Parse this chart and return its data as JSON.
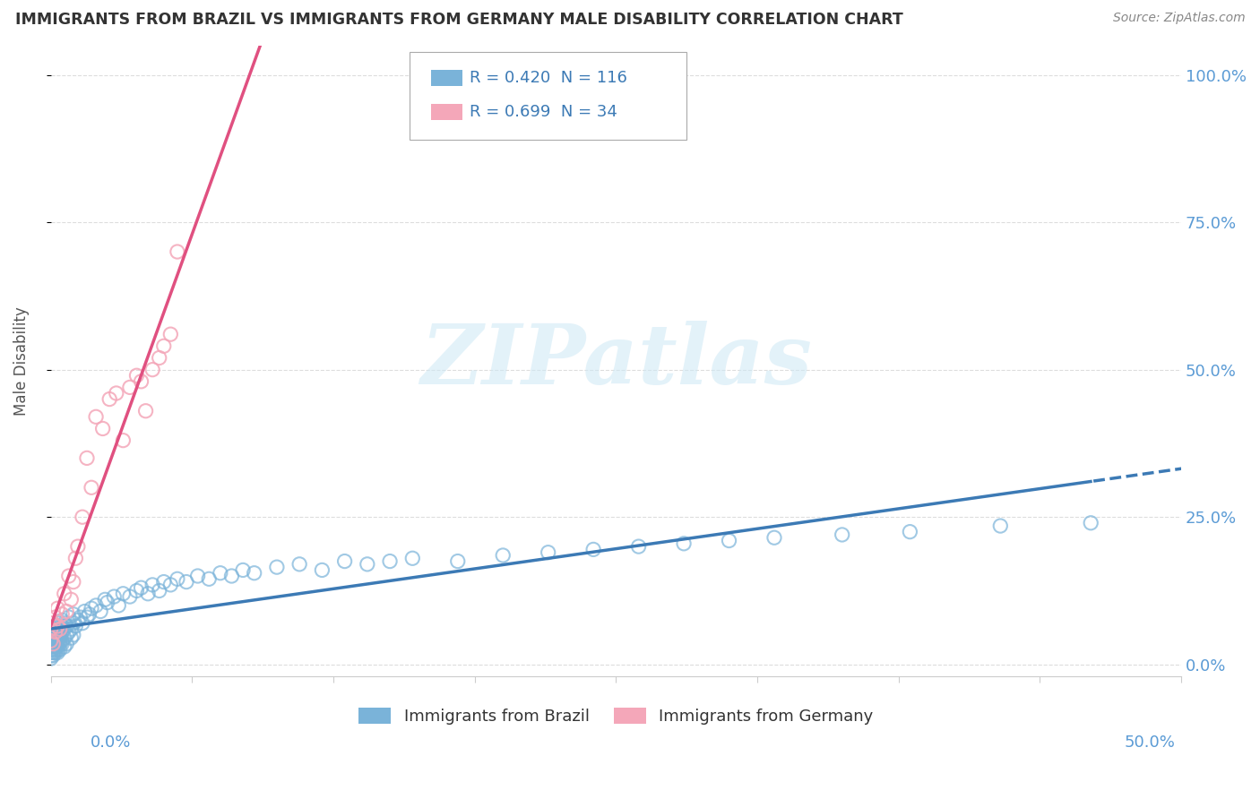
{
  "title": "IMMIGRANTS FROM BRAZIL VS IMMIGRANTS FROM GERMANY MALE DISABILITY CORRELATION CHART",
  "source": "Source: ZipAtlas.com",
  "ylabel": "Male Disability",
  "watermark": "ZIPatlas",
  "brazil": {
    "R": 0.42,
    "N": 116,
    "color": "#7ab3d9",
    "color_line": "#3c7ab5",
    "label": "Immigrants from Brazil",
    "x": [
      0.0,
      0.0,
      0.0,
      0.0,
      0.0,
      0.0,
      0.0,
      0.0,
      0.0,
      0.0,
      0.001,
      0.001,
      0.001,
      0.001,
      0.001,
      0.001,
      0.001,
      0.001,
      0.001,
      0.001,
      0.002,
      0.002,
      0.002,
      0.002,
      0.002,
      0.002,
      0.002,
      0.002,
      0.002,
      0.002,
      0.003,
      0.003,
      0.003,
      0.003,
      0.003,
      0.003,
      0.003,
      0.003,
      0.003,
      0.003,
      0.004,
      0.004,
      0.004,
      0.004,
      0.004,
      0.004,
      0.004,
      0.005,
      0.005,
      0.005,
      0.005,
      0.005,
      0.006,
      0.006,
      0.006,
      0.006,
      0.007,
      0.007,
      0.007,
      0.008,
      0.008,
      0.009,
      0.009,
      0.01,
      0.01,
      0.01,
      0.011,
      0.012,
      0.013,
      0.014,
      0.015,
      0.016,
      0.017,
      0.018,
      0.02,
      0.022,
      0.024,
      0.025,
      0.028,
      0.03,
      0.032,
      0.035,
      0.038,
      0.04,
      0.043,
      0.045,
      0.048,
      0.05,
      0.053,
      0.056,
      0.06,
      0.065,
      0.07,
      0.075,
      0.08,
      0.085,
      0.09,
      0.1,
      0.11,
      0.12,
      0.13,
      0.14,
      0.15,
      0.16,
      0.18,
      0.2,
      0.22,
      0.24,
      0.26,
      0.28,
      0.3,
      0.32,
      0.35,
      0.38,
      0.42,
      0.46
    ],
    "y": [
      0.03,
      0.04,
      0.02,
      0.035,
      0.025,
      0.045,
      0.015,
      0.05,
      0.01,
      0.055,
      0.03,
      0.045,
      0.02,
      0.035,
      0.055,
      0.025,
      0.06,
      0.015,
      0.04,
      0.05,
      0.025,
      0.04,
      0.055,
      0.03,
      0.045,
      0.035,
      0.06,
      0.02,
      0.05,
      0.065,
      0.035,
      0.05,
      0.025,
      0.06,
      0.04,
      0.055,
      0.03,
      0.065,
      0.045,
      0.02,
      0.05,
      0.035,
      0.06,
      0.045,
      0.025,
      0.07,
      0.04,
      0.055,
      0.035,
      0.065,
      0.04,
      0.075,
      0.045,
      0.06,
      0.03,
      0.07,
      0.05,
      0.035,
      0.065,
      0.055,
      0.08,
      0.06,
      0.045,
      0.07,
      0.05,
      0.085,
      0.065,
      0.075,
      0.08,
      0.07,
      0.09,
      0.08,
      0.085,
      0.095,
      0.1,
      0.09,
      0.11,
      0.105,
      0.115,
      0.1,
      0.12,
      0.115,
      0.125,
      0.13,
      0.12,
      0.135,
      0.125,
      0.14,
      0.135,
      0.145,
      0.14,
      0.15,
      0.145,
      0.155,
      0.15,
      0.16,
      0.155,
      0.165,
      0.17,
      0.16,
      0.175,
      0.17,
      0.175,
      0.18,
      0.175,
      0.185,
      0.19,
      0.195,
      0.2,
      0.205,
      0.21,
      0.215,
      0.22,
      0.225,
      0.235,
      0.24
    ]
  },
  "germany": {
    "R": 0.699,
    "N": 34,
    "color": "#f4a7b9",
    "color_line": "#e05080",
    "label": "Immigrants from Germany",
    "x": [
      0.0,
      0.0,
      0.001,
      0.001,
      0.002,
      0.002,
      0.003,
      0.003,
      0.004,
      0.005,
      0.006,
      0.007,
      0.008,
      0.009,
      0.01,
      0.011,
      0.012,
      0.014,
      0.016,
      0.018,
      0.02,
      0.023,
      0.026,
      0.029,
      0.032,
      0.035,
      0.038,
      0.04,
      0.042,
      0.045,
      0.048,
      0.05,
      0.053,
      0.056
    ],
    "y": [
      0.04,
      0.06,
      0.035,
      0.07,
      0.055,
      0.08,
      0.065,
      0.095,
      0.06,
      0.085,
      0.12,
      0.09,
      0.15,
      0.11,
      0.14,
      0.18,
      0.2,
      0.25,
      0.35,
      0.3,
      0.42,
      0.4,
      0.45,
      0.46,
      0.38,
      0.47,
      0.49,
      0.48,
      0.43,
      0.5,
      0.52,
      0.54,
      0.56,
      0.7
    ]
  },
  "xlim": [
    0.0,
    0.5
  ],
  "ylim": [
    -0.02,
    1.05
  ],
  "yticks": [
    0.0,
    0.25,
    0.5,
    0.75,
    1.0
  ],
  "ytick_labels": [
    "0.0%",
    "25.0%",
    "50.0%",
    "75.0%",
    "100.0%"
  ],
  "background_color": "#ffffff",
  "grid_color": "#dddddd"
}
